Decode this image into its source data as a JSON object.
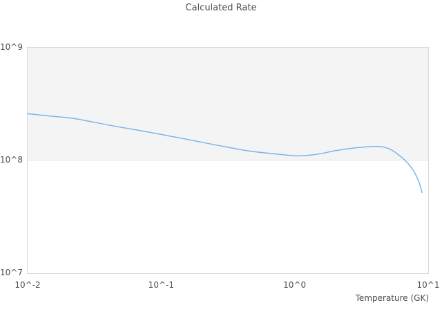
{
  "title": "Calculated Rate",
  "colors": {
    "line": "#7cb5ec",
    "band_fill": "#f4f4f4",
    "plot_border": "#d9d9d9",
    "gridline": "#e2e2e2",
    "text": "#4d4d4d"
  },
  "chart_data": {
    "type": "line",
    "title": "Calculated Rate",
    "xlabel": "Temperature (GK)",
    "ylabel": "",
    "x_scale": "log",
    "y_scale": "log",
    "xlim": [
      0.01,
      10
    ],
    "ylim": [
      10000000.0,
      1000000000.0
    ],
    "legend": "none",
    "grid": "single horizontal gridline at 1e8 (band edge); no vertical gridlines",
    "x_ticks": [
      {
        "label": "10^-2",
        "value": 0.01
      },
      {
        "label": "10^-1",
        "value": 0.1
      },
      {
        "label": "10^0",
        "value": 1
      },
      {
        "label": "10^1",
        "value": 10
      }
    ],
    "y_ticks": [
      {
        "label": "10^9",
        "value": 1000000000.0
      },
      {
        "label": "10^8",
        "value": 100000000.0
      },
      {
        "label": "10^7",
        "value": 10000000.0
      }
    ],
    "plot_bands": [
      {
        "from": 100000000.0,
        "to": 1000000000.0,
        "color": "#f4f4f4"
      }
    ],
    "series": [
      {
        "name": "Calculated Rate",
        "color": "#7cb5ec",
        "x": [
          0.01,
          0.0147,
          0.0215,
          0.0316,
          0.0464,
          0.0681,
          0.1,
          0.147,
          0.215,
          0.316,
          0.464,
          0.681,
          1.0,
          1.25,
          1.5,
          1.75,
          2.0,
          2.5,
          3.0,
          3.5,
          4.0,
          4.5,
          5.0,
          5.5,
          6.0,
          6.5,
          7.0,
          7.5,
          8.0,
          8.5,
          9.0
        ],
        "y": [
          260000000.0,
          248000000.0,
          237000000.0,
          218000000.0,
          200000000.0,
          185000000.0,
          170000000.0,
          156000000.0,
          143000000.0,
          131000000.0,
          121000000.0,
          115000000.0,
          110000000.0,
          111000000.0,
          114000000.0,
          118000000.0,
          122000000.0,
          127000000.0,
          130000000.0,
          132000000.0,
          133000000.0,
          132000000.0,
          128000000.0,
          121000000.0,
          112000000.0,
          104000000.0,
          95000000.0,
          86000000.0,
          76000000.0,
          65000000.0,
          52000000.0
        ]
      }
    ]
  }
}
